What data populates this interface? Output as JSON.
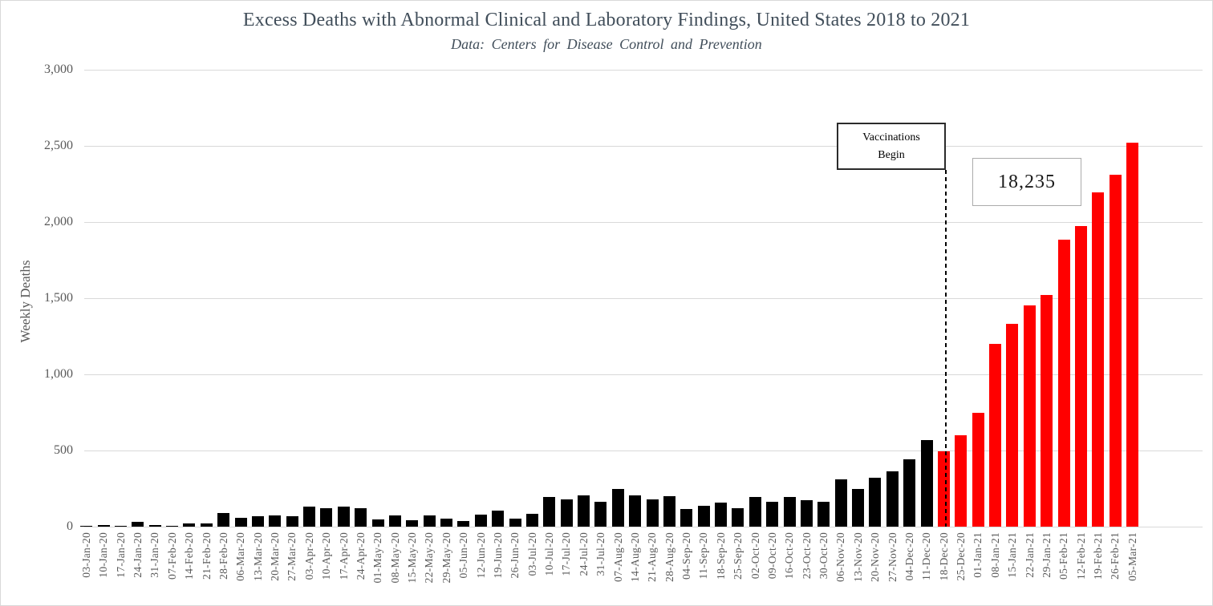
{
  "chart_data": {
    "type": "bar",
    "title": "Excess Deaths with Abnormal Clinical and Laboratory Findings, United States 2018 to 2021",
    "subtitle": "Data: Centers for Disease Control and Prevention",
    "ylabel": "Weekly Deaths",
    "xlabel": "",
    "ylim": [
      0,
      3000
    ],
    "grid": "horizontal",
    "legend": "none",
    "ytick_values": [
      0,
      500,
      1000,
      1500,
      2000,
      2500,
      3000
    ],
    "ytick_labels": [
      "0",
      "500",
      "1,000",
      "1,500",
      "2,000",
      "2,500",
      "3,000"
    ],
    "categories": [
      "03-Jan-20",
      "10-Jan-20",
      "17-Jan-20",
      "24-Jan-20",
      "31-Jan-20",
      "07-Feb-20",
      "14-Feb-20",
      "21-Feb-20",
      "28-Feb-20",
      "06-Mar-20",
      "13-Mar-20",
      "20-Mar-20",
      "27-Mar-20",
      "03-Apr-20",
      "10-Apr-20",
      "17-Apr-20",
      "24-Apr-20",
      "01-May-20",
      "08-May-20",
      "15-May-20",
      "22-May-20",
      "29-May-20",
      "05-Jun-20",
      "12-Jun-20",
      "19-Jun-20",
      "26-Jun-20",
      "03-Jul-20",
      "10-Jul-20",
      "17-Jul-20",
      "24-Jul-20",
      "31-Jul-20",
      "07-Aug-20",
      "14-Aug-20",
      "21-Aug-20",
      "28-Aug-20",
      "04-Sep-20",
      "11-Sep-20",
      "18-Sep-20",
      "25-Sep-20",
      "02-Oct-20",
      "09-Oct-20",
      "16-Oct-20",
      "23-Oct-20",
      "30-Oct-20",
      "06-Nov-20",
      "13-Nov-20",
      "20-Nov-20",
      "27-Nov-20",
      "04-Dec-20",
      "11-Dec-20",
      "18-Dec-20",
      "25-Dec-20",
      "01-Jan-21",
      "08-Jan-21",
      "15-Jan-21",
      "22-Jan-21",
      "29-Jan-21",
      "05-Feb-21",
      "12-Feb-21",
      "19-Feb-21",
      "26-Feb-21",
      "05-Mar-21"
    ],
    "values": [
      5,
      10,
      3,
      30,
      12,
      3,
      22,
      20,
      90,
      60,
      70,
      75,
      70,
      130,
      120,
      130,
      120,
      45,
      75,
      40,
      72,
      55,
      38,
      78,
      105,
      55,
      84,
      195,
      178,
      205,
      165,
      245,
      205,
      180,
      200,
      115,
      135,
      160,
      122,
      195,
      165,
      195,
      175,
      165,
      310,
      245,
      323,
      363,
      440,
      570,
      497,
      601,
      748,
      1200,
      1334,
      1452,
      1520,
      1885,
      1974,
      2193,
      2312,
      2519
    ],
    "highlight_start_category": "18-Dec-20",
    "highlight_start_index": 50,
    "colors": {
      "bar_default": "#000000",
      "bar_highlight": "#ff0000",
      "gridline": "#d9d9d9",
      "axis_text": "#595959",
      "title_text": "#414e5a"
    },
    "annotations": {
      "vaccinations_line1": "Vaccinations",
      "vaccinations_line2": "Begin",
      "total_label": "18,235",
      "dashed_line_at": "18-Dec-20"
    }
  }
}
